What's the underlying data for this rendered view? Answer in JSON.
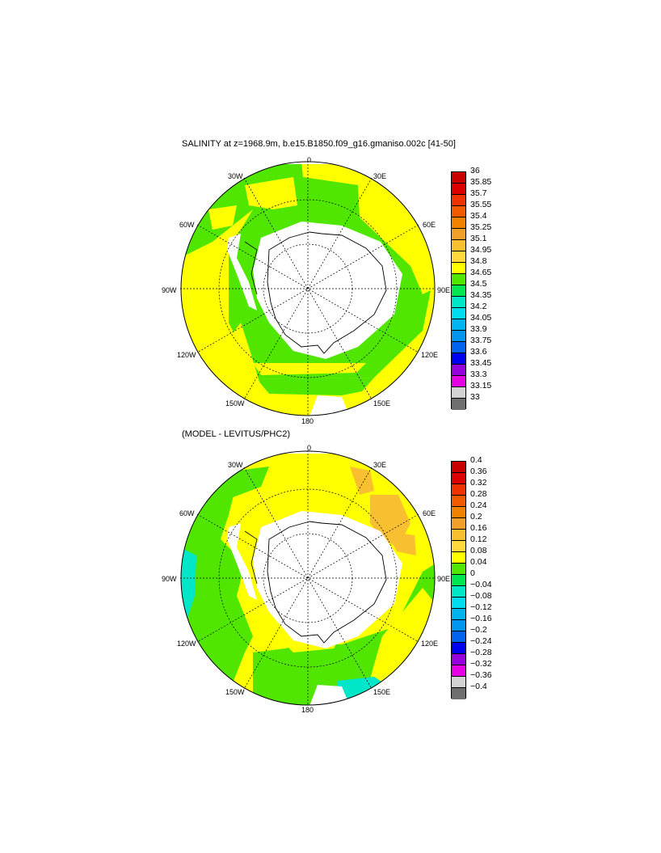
{
  "panel1": {
    "title": "SALINITY at z=1968.9m, b.e15.B1850.f09_g16.gmaniso.002c [41-50]",
    "lon_labels": {
      "n0": "0",
      "n30e": "30E",
      "n60e": "60E",
      "n90e": "90E",
      "n120e": "120E",
      "n150e": "150E",
      "n180": "180",
      "n150w": "150W",
      "n120w": "120W",
      "n90w": "90W",
      "n60w": "60W",
      "n30w": "30W"
    },
    "colorbar": {
      "labels": [
        "36",
        "35.85",
        "35.7",
        "35.55",
        "35.4",
        "35.25",
        "35.1",
        "34.95",
        "34.8",
        "34.65",
        "34.5",
        "34.35",
        "34.2",
        "34.05",
        "33.9",
        "33.75",
        "33.6",
        "33.45",
        "33.3",
        "33.15",
        "33"
      ],
      "colors": [
        "#c80000",
        "#dc0000",
        "#f03200",
        "#f05a00",
        "#f08200",
        "#f0a028",
        "#f8c030",
        "#ffd83c",
        "#ffff00",
        "#50e600",
        "#00e650",
        "#00e6c8",
        "#00dcf0",
        "#00b4f0",
        "#0096f0",
        "#0064f0",
        "#0000f0",
        "#9600dc",
        "#e600e6",
        "#d2d2d2",
        "#6e6e6e"
      ]
    }
  },
  "panel2": {
    "title": "(MODEL - LEVITUS/PHC2)",
    "lon_labels": {
      "n0": "0",
      "n30e": "30E",
      "n60e": "60E",
      "n90e": "90E",
      "n120e": "120E",
      "n150e": "150E",
      "n180": "180",
      "n150w": "150W",
      "n120w": "120W",
      "n90w": "90W",
      "n60w": "60W",
      "n30w": "30W"
    },
    "colorbar": {
      "labels": [
        "0.4",
        "0.36",
        "0.32",
        "0.28",
        "0.24",
        "0.2",
        "0.16",
        "0.12",
        "0.08",
        "0.04",
        "0",
        "−0.04",
        "−0.08",
        "−0.12",
        "−0.16",
        "−0.2",
        "−0.24",
        "−0.28",
        "−0.32",
        "−0.36",
        "−0.4"
      ],
      "colors": [
        "#c80000",
        "#dc0000",
        "#f03200",
        "#f05a00",
        "#f08200",
        "#f0a028",
        "#f8c030",
        "#ffd83c",
        "#ffff00",
        "#50e600",
        "#00e650",
        "#00e6c8",
        "#00dcf0",
        "#00b4f0",
        "#0096f0",
        "#0064f0",
        "#0000f0",
        "#9600dc",
        "#e600e6",
        "#d2d2d2",
        "#6e6e6e"
      ]
    }
  }
}
